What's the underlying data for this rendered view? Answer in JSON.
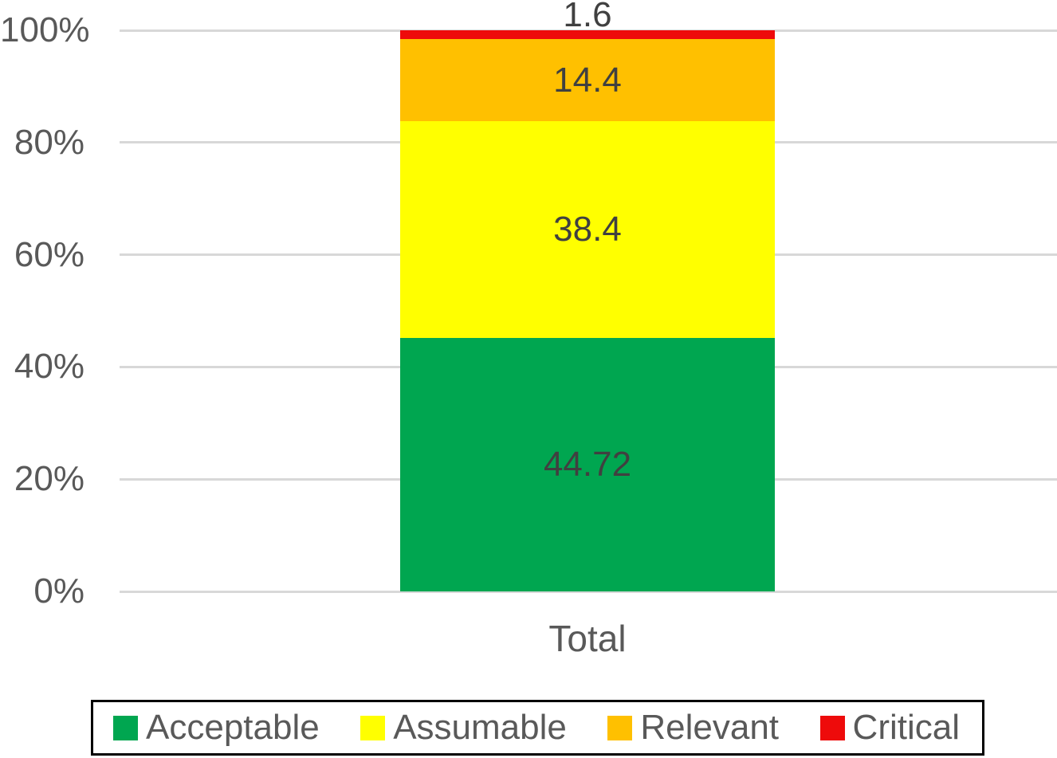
{
  "chart_data": {
    "type": "bar",
    "subtype": "stacked-100-percent",
    "title": "",
    "xlabel": "",
    "ylabel": "",
    "categories": [
      "Total"
    ],
    "series": [
      {
        "name": "Acceptable",
        "values": [
          44.72
        ],
        "label": "44.72",
        "color": "#00A650"
      },
      {
        "name": "Assumable",
        "values": [
          38.4
        ],
        "label": "38.4",
        "color": "#FFFF00"
      },
      {
        "name": "Relevant",
        "values": [
          14.4
        ],
        "label": "14.4",
        "color": "#FFC000"
      },
      {
        "name": "Critical",
        "values": [
          1.6
        ],
        "label": "1.6",
        "color": "#EE0B0B"
      }
    ],
    "ylim": [
      0,
      100
    ],
    "yticks": [
      "0%",
      "20%",
      "40%",
      "60%",
      "80%",
      "100%"
    ],
    "grid": true,
    "legend_position": "bottom",
    "legend_entries": [
      "Acceptable",
      "Assumable",
      "Relevant",
      "Critical"
    ]
  },
  "colors": {
    "background": "#FFFFFF",
    "grid": "#D8D8D8",
    "tick_text": "#595959",
    "data_label_text": "#404040",
    "category_text": "#595959",
    "legend_text": "#595959",
    "legend_border": "#000000"
  }
}
